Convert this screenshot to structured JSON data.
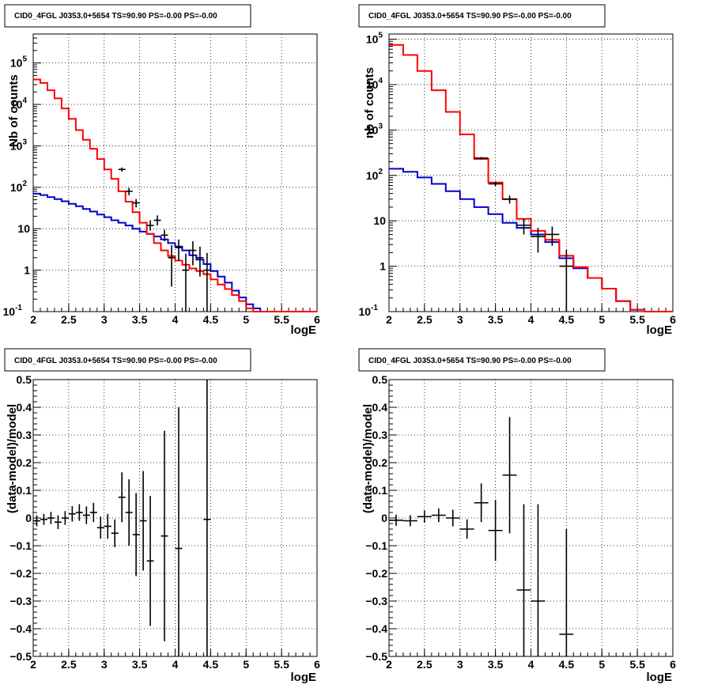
{
  "colors": {
    "total_model": "#ff0000",
    "background_model": "#0000cc",
    "data": "#000000",
    "grid": "#000000"
  },
  "chart_data": [
    {
      "type": "line",
      "title": "CID0_4FGL J0353.0+5654 TS=90.90 PS=-0.00 PS=-0.00",
      "xlabel": "logE",
      "ylabel": "Nb of counts",
      "yscale": "log",
      "xlim": [
        2,
        6
      ],
      "ylim": [
        0.1,
        500000
      ],
      "grid": true,
      "x_ticks": [
        "2",
        "2.5",
        "3",
        "3.5",
        "4",
        "4.5",
        "5",
        "5.5",
        "6"
      ],
      "y_ticks": [
        {
          "v": 0.1,
          "base": "10",
          "exp": "-1"
        },
        {
          "v": 1,
          "base": "1",
          "exp": ""
        },
        {
          "v": 10,
          "base": "10",
          "exp": ""
        },
        {
          "v": 100,
          "base": "10",
          "exp": "2"
        },
        {
          "v": 1000,
          "base": "10",
          "exp": "3"
        },
        {
          "v": 10000,
          "base": "10",
          "exp": "4"
        },
        {
          "v": 100000,
          "base": "10",
          "exp": "5"
        }
      ],
      "bin_edges": [
        2.0,
        2.1,
        2.2,
        2.3,
        2.4,
        2.5,
        2.6,
        2.7,
        2.8,
        2.9,
        3.0,
        3.1,
        3.2,
        3.3,
        3.4,
        3.5,
        3.6,
        3.7,
        3.8,
        3.9,
        4.0,
        4.1,
        4.2,
        4.3,
        4.4,
        4.5,
        4.6,
        4.7,
        4.8,
        4.9,
        5.0,
        5.1,
        5.2,
        5.3,
        5.4,
        5.5,
        5.6,
        5.7,
        5.8,
        5.9,
        6.0
      ],
      "series": [
        {
          "role": "model_total",
          "values": [
            40000,
            33000,
            22000,
            14000,
            8000,
            4500,
            2400,
            1400,
            850,
            480,
            270,
            160,
            80,
            45,
            25,
            14,
            7.5,
            4.5,
            3.0,
            2.2,
            1.7,
            1.35,
            1.1,
            0.95,
            0.8,
            0.6,
            0.45,
            0.35,
            0.25,
            0.18,
            0.12,
            0.1,
            0.1,
            0.1,
            0.1,
            0.1,
            0.1,
            0.1,
            0.1,
            0.1
          ]
        },
        {
          "role": "model_background",
          "values": [
            70,
            65,
            58,
            52,
            46,
            40,
            35,
            30,
            26,
            22,
            19,
            16,
            14,
            12,
            10,
            8.5,
            7.5,
            6.5,
            5.5,
            4.5,
            3.7,
            3.0,
            2.3,
            1.8,
            1.4,
            0.95,
            0.7,
            0.5,
            0.32,
            0.22,
            0.15,
            0.12,
            0.1,
            0.1,
            0.1,
            0.1,
            0.1,
            0.1,
            0.1,
            0.1
          ]
        },
        {
          "role": "data",
          "points": [
            {
              "x": 3.25,
              "y": 270,
              "lo": 240,
              "hi": 300
            },
            {
              "x": 3.35,
              "y": 80,
              "lo": 64,
              "hi": 96
            },
            {
              "x": 3.45,
              "y": 42,
              "lo": 33,
              "hi": 52
            },
            {
              "x": 3.65,
              "y": 12,
              "lo": 9,
              "hi": 16
            },
            {
              "x": 3.75,
              "y": 16,
              "lo": 12,
              "hi": 21
            },
            {
              "x": 3.85,
              "y": 7,
              "lo": 5,
              "hi": 9.5
            },
            {
              "x": 3.95,
              "y": 2,
              "lo": 0.4,
              "hi": 4
            },
            {
              "x": 4.05,
              "y": 3.5,
              "lo": 1.7,
              "hi": 5.5
            },
            {
              "x": 4.15,
              "y": 1,
              "lo": 0.1,
              "hi": 2.5
            },
            {
              "x": 4.25,
              "y": 3,
              "lo": 1.3,
              "hi": 5
            },
            {
              "x": 4.35,
              "y": 2,
              "lo": 0.7,
              "hi": 3.7
            },
            {
              "x": 4.45,
              "y": 1,
              "lo": 0.1,
              "hi": 2.6
            }
          ]
        }
      ]
    },
    {
      "type": "line",
      "title": "CID0_4FGL J0353.0+5654 TS=90.90 PS=-0.00 PS=-0.00",
      "xlabel": "logE",
      "ylabel": "nb of counts",
      "yscale": "log",
      "xlim": [
        2,
        6
      ],
      "ylim": [
        0.1,
        130000
      ],
      "grid": true,
      "x_ticks": [
        "2",
        "2.5",
        "3",
        "3.5",
        "4",
        "4.5",
        "5",
        "5.5",
        "6"
      ],
      "y_ticks": [
        {
          "v": 0.1,
          "base": "10",
          "exp": "-1"
        },
        {
          "v": 1,
          "base": "1",
          "exp": ""
        },
        {
          "v": 10,
          "base": "10",
          "exp": ""
        },
        {
          "v": 100,
          "base": "10",
          "exp": "2"
        },
        {
          "v": 1000,
          "base": "10",
          "exp": "3"
        },
        {
          "v": 10000,
          "base": "10",
          "exp": "4"
        },
        {
          "v": 100000,
          "base": "10",
          "exp": "5"
        }
      ],
      "bin_edges": [
        2.0,
        2.2,
        2.4,
        2.6,
        2.8,
        3.0,
        3.2,
        3.4,
        3.6,
        3.8,
        4.0,
        4.2,
        4.4,
        4.6,
        4.8,
        5.0,
        5.2,
        5.4,
        5.6,
        5.8,
        6.0
      ],
      "series": [
        {
          "role": "model_total",
          "values": [
            75000,
            45000,
            20000,
            7500,
            2500,
            800,
            230,
            70,
            30,
            11,
            6,
            3.8,
            1.7,
            0.95,
            0.55,
            0.32,
            0.17,
            0.11,
            0.1,
            0.1
          ]
        },
        {
          "role": "model_background",
          "values": [
            140,
            120,
            90,
            65,
            45,
            30,
            20,
            14,
            9,
            7,
            5,
            3.4,
            1.5,
            0.9,
            0.55,
            0.32,
            0.17,
            0.11,
            0.1,
            0.1
          ]
        },
        {
          "role": "data",
          "points": [
            {
              "x": 3.3,
              "y": 240,
              "lo": 225,
              "hi": 255
            },
            {
              "x": 3.5,
              "y": 65,
              "lo": 58,
              "hi": 73
            },
            {
              "x": 3.7,
              "y": 30,
              "lo": 24,
              "hi": 36
            },
            {
              "x": 3.9,
              "y": 8,
              "lo": 5,
              "hi": 11
            },
            {
              "x": 4.1,
              "y": 4.5,
              "lo": 2,
              "hi": 7
            },
            {
              "x": 4.3,
              "y": 5,
              "lo": 2.8,
              "hi": 7.5
            },
            {
              "x": 4.5,
              "y": 1,
              "lo": 0.1,
              "hi": 2.3
            }
          ]
        }
      ]
    },
    {
      "type": "scatter",
      "title": "CID0_4FGL J0353.0+5654 TS=90.90 PS=-0.00 PS=-0.00",
      "xlabel": "logE",
      "ylabel": "(data-model)/model",
      "yscale": "linear",
      "xlim": [
        2,
        6
      ],
      "ylim": [
        -0.5,
        0.5
      ],
      "grid": true,
      "x_ticks": [
        "2",
        "2.5",
        "3",
        "3.5",
        "4",
        "4.5",
        "5",
        "5.5",
        "6"
      ],
      "y_ticks": [
        "-0.5",
        "-0.4",
        "-0.3",
        "-0.2",
        "-0.1",
        "0",
        "0.1",
        "0.2",
        "0.3",
        "0.4",
        "0.5"
      ],
      "points": [
        {
          "x": 2.05,
          "y": -0.01,
          "err": 0.02
        },
        {
          "x": 2.15,
          "y": -0.005,
          "err": 0.02
        },
        {
          "x": 2.25,
          "y": 0.0,
          "err": 0.022
        },
        {
          "x": 2.35,
          "y": -0.015,
          "err": 0.025
        },
        {
          "x": 2.45,
          "y": 0.0,
          "err": 0.025
        },
        {
          "x": 2.55,
          "y": 0.015,
          "err": 0.028
        },
        {
          "x": 2.65,
          "y": 0.02,
          "err": 0.03
        },
        {
          "x": 2.75,
          "y": 0.01,
          "err": 0.032
        },
        {
          "x": 2.85,
          "y": 0.02,
          "err": 0.035
        },
        {
          "x": 2.95,
          "y": -0.035,
          "err": 0.04
        },
        {
          "x": 3.05,
          "y": -0.03,
          "err": 0.045
        },
        {
          "x": 3.15,
          "y": -0.055,
          "err": 0.05
        },
        {
          "x": 3.25,
          "y": 0.075,
          "err": 0.09
        },
        {
          "x": 3.35,
          "y": 0.02,
          "err": 0.12
        },
        {
          "x": 3.45,
          "y": -0.06,
          "err": 0.15
        },
        {
          "x": 3.55,
          "y": -0.01,
          "err": 0.18
        },
        {
          "x": 3.65,
          "y": -0.155,
          "err": 0.235
        },
        {
          "x": 3.85,
          "y": -0.065,
          "err": 0.38
        },
        {
          "x": 4.05,
          "y": -0.11,
          "err": 0.51
        },
        {
          "x": 4.45,
          "y": -0.005,
          "err": 0.6
        }
      ]
    },
    {
      "type": "scatter",
      "title": "CID0_4FGL J0353.0+5654 TS=90.90 PS=-0.00 PS=-0.00",
      "xlabel": "logE",
      "ylabel": "(data-model)/model",
      "yscale": "linear",
      "xlim": [
        2,
        6
      ],
      "ylim": [
        -0.5,
        0.5
      ],
      "grid": true,
      "x_ticks": [
        "2",
        "2.5",
        "3",
        "3.5",
        "4",
        "4.5",
        "5",
        "5.5",
        "6"
      ],
      "y_ticks": [
        "-0.5",
        "-0.4",
        "-0.3",
        "-0.2",
        "-0.1",
        "0",
        "0.1",
        "0.2",
        "0.3",
        "0.4",
        "0.5"
      ],
      "points": [
        {
          "x": 2.1,
          "y": -0.008,
          "err": 0.02
        },
        {
          "x": 2.3,
          "y": -0.01,
          "err": 0.02
        },
        {
          "x": 2.5,
          "y": 0.005,
          "err": 0.022
        },
        {
          "x": 2.7,
          "y": 0.01,
          "err": 0.025
        },
        {
          "x": 2.9,
          "y": 0.0,
          "err": 0.03
        },
        {
          "x": 3.1,
          "y": -0.04,
          "err": 0.035
        },
        {
          "x": 3.3,
          "y": 0.055,
          "err": 0.07
        },
        {
          "x": 3.5,
          "y": -0.045,
          "err": 0.11
        },
        {
          "x": 3.7,
          "y": 0.155,
          "err": 0.21
        },
        {
          "x": 3.9,
          "y": -0.26,
          "err": 0.31
        },
        {
          "x": 4.1,
          "y": -0.3,
          "err": 0.35
        },
        {
          "x": 4.5,
          "y": -0.42,
          "err": 0.38
        }
      ]
    }
  ]
}
